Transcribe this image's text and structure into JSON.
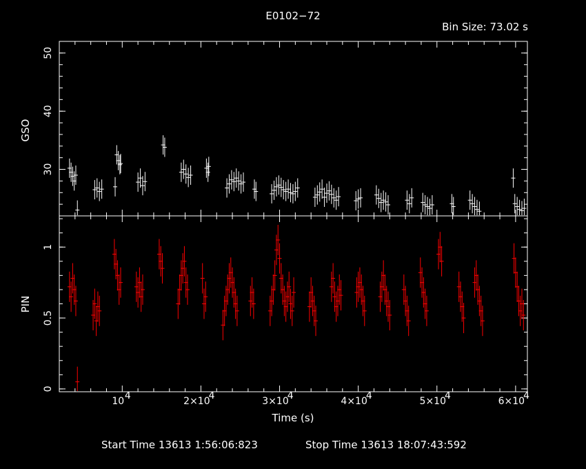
{
  "header": {
    "title": "E0102−72",
    "bin_size": "Bin Size: 73.02 s"
  },
  "footer": {
    "start": "Start Time 13613  1:56:06:823",
    "stop": "Stop Time 13613 18:07:43:592"
  },
  "colors": {
    "gso": "#ffffff",
    "pin": "#ff0000",
    "background": "#000000",
    "axes": "#ffffff"
  },
  "chart_data": [
    {
      "type": "scatter",
      "panel": "top",
      "ylabel": "GSO",
      "ylim": [
        22,
        52
      ],
      "xlim": [
        2000,
        61500
      ],
      "yticks": [
        {
          "v": 30,
          "label": "30"
        },
        {
          "v": 40,
          "label": "40"
        },
        {
          "v": 50,
          "label": "50"
        }
      ],
      "series": [
        {
          "values": [
            [
              3300,
              30.2
            ],
            [
              3500,
              29.5
            ],
            [
              3700,
              28.8
            ],
            [
              3900,
              28.0
            ],
            [
              4100,
              29.0
            ],
            [
              4300,
              23
            ],
            [
              6500,
              26.5
            ],
            [
              6800,
              26.8
            ],
            [
              7100,
              26.2
            ],
            [
              7400,
              26.6
            ],
            [
              9300,
              32.5
            ],
            [
              9500,
              31.5
            ],
            [
              9700,
              30.8
            ],
            [
              9800,
              31.0
            ],
            [
              9100,
              27
            ],
            [
              12000,
              27.8
            ],
            [
              12300,
              28.5
            ],
            [
              12600,
              27.2
            ],
            [
              12900,
              27.9
            ],
            [
              15200,
              34.2
            ],
            [
              15400,
              33.8
            ],
            [
              17500,
              29.5
            ],
            [
              17800,
              30.0
            ],
            [
              18100,
              29.2
            ],
            [
              18400,
              28.6
            ],
            [
              18700,
              29.0
            ],
            [
              20700,
              30.2
            ],
            [
              20900,
              29.5
            ],
            [
              21000,
              30.5
            ],
            [
              23300,
              26.8
            ],
            [
              23600,
              27.5
            ],
            [
              23900,
              28.2
            ],
            [
              24200,
              27.9
            ],
            [
              24500,
              28.5
            ],
            [
              24800,
              28.0
            ],
            [
              25100,
              27.5
            ],
            [
              25400,
              27.8
            ],
            [
              26800,
              26.6
            ],
            [
              27000,
              26.2
            ],
            [
              29000,
              25.8
            ],
            [
              29300,
              26.4
            ],
            [
              29600,
              27.0
            ],
            [
              29900,
              27.3
            ],
            [
              30200,
              26.9
            ],
            [
              30500,
              26.5
            ],
            [
              30800,
              26.2
            ],
            [
              31100,
              26.6
            ],
            [
              31400,
              26.0
            ],
            [
              31700,
              25.8
            ],
            [
              32000,
              26.2
            ],
            [
              32300,
              26.8
            ],
            [
              34500,
              25.2
            ],
            [
              34800,
              25.6
            ],
            [
              35100,
              26.1
            ],
            [
              35400,
              26.6
            ],
            [
              35700,
              25.2
            ],
            [
              36000,
              25.9
            ],
            [
              36300,
              26.3
            ],
            [
              36600,
              25.7
            ],
            [
              36900,
              25.1
            ],
            [
              37200,
              24.7
            ],
            [
              37500,
              25.3
            ],
            [
              39700,
              24.6
            ],
            [
              40000,
              24.9
            ],
            [
              40300,
              25.1
            ],
            [
              42300,
              25.6
            ],
            [
              42600,
              25.0
            ],
            [
              42900,
              24.3
            ],
            [
              43200,
              24.7
            ],
            [
              43500,
              24.4
            ],
            [
              43800,
              23.9
            ],
            [
              46200,
              24.7
            ],
            [
              46500,
              24.1
            ],
            [
              46800,
              25.1
            ],
            [
              48200,
              24.3
            ],
            [
              48500,
              23.9
            ],
            [
              48800,
              23.6
            ],
            [
              49100,
              23.3
            ],
            [
              49400,
              23.9
            ],
            [
              51900,
              24.1
            ],
            [
              52100,
              23.6
            ],
            [
              54200,
              24.7
            ],
            [
              54500,
              24.1
            ],
            [
              54800,
              23.6
            ],
            [
              55100,
              23.1
            ],
            [
              55400,
              22.8
            ],
            [
              59700,
              28.5
            ],
            [
              59900,
              24.1
            ],
            [
              60200,
              23.6
            ],
            [
              60500,
              23.1
            ],
            [
              60800,
              22.9
            ],
            [
              61100,
              23.3
            ]
          ]
        }
      ]
    },
    {
      "type": "scatter",
      "panel": "bottom",
      "xlabel": "Time (s)",
      "ylabel": "PIN",
      "ylim": [
        -0.02,
        1.22
      ],
      "xlim": [
        2000,
        61500
      ],
      "xticks": [
        {
          "v": 10000,
          "label": "10",
          "exp": "4"
        },
        {
          "v": 20000,
          "label": "2×10",
          "exp": "4"
        },
        {
          "v": 30000,
          "label": "3×10",
          "exp": "4"
        },
        {
          "v": 40000,
          "label": "4×10",
          "exp": "4"
        },
        {
          "v": 50000,
          "label": "5×10",
          "exp": "4"
        },
        {
          "v": 60000,
          "label": "6×10",
          "exp": "4"
        }
      ],
      "yticks": [
        {
          "v": 0,
          "label": "0"
        },
        {
          "v": 0.5,
          "label": "0.5"
        },
        {
          "v": 1,
          "label": "1"
        }
      ],
      "series": [
        {
          "values": [
            [
              3300,
              0.72
            ],
            [
              3500,
              0.65
            ],
            [
              3700,
              0.78
            ],
            [
              3900,
              0.7
            ],
            [
              4100,
              0.62
            ],
            [
              4300,
              0.05
            ],
            [
              6300,
              0.52
            ],
            [
              6500,
              0.6
            ],
            [
              6700,
              0.48
            ],
            [
              6900,
              0.58
            ],
            [
              7100,
              0.55
            ],
            [
              9000,
              0.95
            ],
            [
              9200,
              0.88
            ],
            [
              9400,
              0.8
            ],
            [
              9600,
              0.7
            ],
            [
              9800,
              0.75
            ],
            [
              11800,
              0.72
            ],
            [
              12000,
              0.68
            ],
            [
              12200,
              0.75
            ],
            [
              12400,
              0.65
            ],
            [
              12600,
              0.7
            ],
            [
              14700,
              0.95
            ],
            [
              14900,
              0.9
            ],
            [
              15100,
              0.85
            ],
            [
              17100,
              0.6
            ],
            [
              17300,
              0.7
            ],
            [
              17500,
              0.8
            ],
            [
              17700,
              0.85
            ],
            [
              17900,
              0.9
            ],
            [
              18100,
              0.75
            ],
            [
              18300,
              0.7
            ],
            [
              20200,
              0.78
            ],
            [
              20400,
              0.6
            ],
            [
              20600,
              0.65
            ],
            [
              22800,
              0.45
            ],
            [
              23000,
              0.55
            ],
            [
              23200,
              0.62
            ],
            [
              23400,
              0.7
            ],
            [
              23600,
              0.78
            ],
            [
              23800,
              0.82
            ],
            [
              24000,
              0.75
            ],
            [
              24200,
              0.68
            ],
            [
              24400,
              0.6
            ],
            [
              24600,
              0.55
            ],
            [
              26300,
              0.62
            ],
            [
              26500,
              0.68
            ],
            [
              26700,
              0.6
            ],
            [
              28800,
              0.55
            ],
            [
              29000,
              0.62
            ],
            [
              29200,
              0.7
            ],
            [
              29400,
              0.8
            ],
            [
              29600,
              0.98
            ],
            [
              29800,
              1.05
            ],
            [
              30000,
              0.92
            ],
            [
              30200,
              0.78
            ],
            [
              30400,
              0.7
            ],
            [
              30600,
              0.62
            ],
            [
              30800,
              0.58
            ],
            [
              31000,
              0.65
            ],
            [
              31200,
              0.72
            ],
            [
              31400,
              0.6
            ],
            [
              31600,
              0.55
            ],
            [
              31800,
              0.68
            ],
            [
              33800,
              0.58
            ],
            [
              34000,
              0.68
            ],
            [
              34200,
              0.62
            ],
            [
              34400,
              0.55
            ],
            [
              34600,
              0.48
            ],
            [
              36600,
              0.72
            ],
            [
              36800,
              0.78
            ],
            [
              37000,
              0.65
            ],
            [
              37200,
              0.58
            ],
            [
              37400,
              0.62
            ],
            [
              37600,
              0.7
            ],
            [
              37800,
              0.66
            ],
            [
              39800,
              0.68
            ],
            [
              40000,
              0.72
            ],
            [
              40200,
              0.75
            ],
            [
              40400,
              0.7
            ],
            [
              40600,
              0.62
            ],
            [
              40800,
              0.55
            ],
            [
              42800,
              0.65
            ],
            [
              43000,
              0.72
            ],
            [
              43200,
              0.8
            ],
            [
              43400,
              0.7
            ],
            [
              43600,
              0.62
            ],
            [
              43800,
              0.58
            ],
            [
              44000,
              0.52
            ],
            [
              45800,
              0.7
            ],
            [
              46000,
              0.62
            ],
            [
              46200,
              0.55
            ],
            [
              46400,
              0.48
            ],
            [
              47900,
              0.82
            ],
            [
              48100,
              0.75
            ],
            [
              48300,
              0.68
            ],
            [
              48500,
              0.6
            ],
            [
              48700,
              0.55
            ],
            [
              50200,
              0.95
            ],
            [
              50400,
              1.0
            ],
            [
              50600,
              0.9
            ],
            [
              52800,
              0.72
            ],
            [
              53000,
              0.65
            ],
            [
              53200,
              0.58
            ],
            [
              53400,
              0.5
            ],
            [
              54800,
              0.75
            ],
            [
              55000,
              0.8
            ],
            [
              55200,
              0.7
            ],
            [
              55400,
              0.62
            ],
            [
              55600,
              0.55
            ],
            [
              55800,
              0.48
            ],
            [
              59800,
              0.92
            ],
            [
              60000,
              0.82
            ],
            [
              60200,
              0.72
            ],
            [
              60400,
              0.62
            ],
            [
              60600,
              0.55
            ],
            [
              60800,
              0.6
            ],
            [
              61000,
              0.52
            ]
          ]
        }
      ]
    }
  ]
}
